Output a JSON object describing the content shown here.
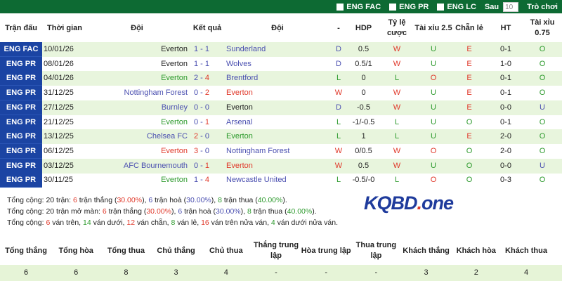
{
  "topbar": {
    "filters": [
      "ENG FAC",
      "ENG PR",
      "ENG LC"
    ],
    "after_label": "Sau",
    "count": "10",
    "games_label": "Trò chơi"
  },
  "header": [
    "Trận đấu",
    "Thời gian",
    "Đội",
    "Kết quả",
    "Đội",
    "-",
    "HDP",
    "Tỷ lệ cược",
    "Tài xỉu 2.5",
    "Chẵn lẻ",
    "HT",
    "Tài xỉu 0.75"
  ],
  "colors": {
    "topbar": "#0d6a33",
    "league": "#1b44a3",
    "row_alt": "#e8f5dd",
    "win": "#e0392b",
    "draw": "#4a4fb0",
    "lose": "#2d9a2d"
  },
  "rows": [
    {
      "league": "ENG FAC",
      "date": "10/01/26",
      "team1": "Everton",
      "t1c": "plain",
      "s1": "1",
      "s1c": "blue",
      "s2": "1",
      "s2c": "blue",
      "team2": "Sunderland",
      "t2c": "blue",
      "res": "D",
      "resc": "blue",
      "hdp": "0.5",
      "odds": "W",
      "oddsc": "red",
      "tx": "U",
      "txc": "green",
      "cl": "E",
      "clc": "red",
      "ht": "0-1",
      "t7": "O",
      "t7c": "green"
    },
    {
      "league": "ENG PR",
      "date": "08/01/26",
      "team1": "Everton",
      "t1c": "plain",
      "s1": "1",
      "s1c": "blue",
      "s2": "1",
      "s2c": "blue",
      "team2": "Wolves",
      "t2c": "blue",
      "res": "D",
      "resc": "blue",
      "hdp": "0.5/1",
      "odds": "W",
      "oddsc": "red",
      "tx": "U",
      "txc": "green",
      "cl": "E",
      "clc": "red",
      "ht": "1-0",
      "t7": "O",
      "t7c": "green"
    },
    {
      "league": "ENG PR",
      "date": "04/01/26",
      "team1": "Everton",
      "t1c": "green",
      "s1": "2",
      "s1c": "blue",
      "s2": "4",
      "s2c": "red",
      "team2": "Brentford",
      "t2c": "blue",
      "res": "L",
      "resc": "green",
      "hdp": "0",
      "odds": "L",
      "oddsc": "green",
      "tx": "O",
      "txc": "red",
      "cl": "E",
      "clc": "red",
      "ht": "0-1",
      "t7": "O",
      "t7c": "green"
    },
    {
      "league": "ENG PR",
      "date": "31/12/25",
      "team1": "Nottingham Forest",
      "t1c": "blue",
      "s1": "0",
      "s1c": "blue",
      "s2": "2",
      "s2c": "red",
      "team2": "Everton",
      "t2c": "red",
      "res": "W",
      "resc": "red",
      "hdp": "0",
      "odds": "W",
      "oddsc": "red",
      "tx": "U",
      "txc": "green",
      "cl": "E",
      "clc": "red",
      "ht": "0-1",
      "t7": "O",
      "t7c": "green"
    },
    {
      "league": "ENG PR",
      "date": "27/12/25",
      "team1": "Burnley",
      "t1c": "blue",
      "s1": "0",
      "s1c": "blue",
      "s2": "0",
      "s2c": "blue",
      "team2": "Everton",
      "t2c": "plain",
      "res": "D",
      "resc": "blue",
      "hdp": "-0.5",
      "odds": "W",
      "oddsc": "red",
      "tx": "U",
      "txc": "green",
      "cl": "E",
      "clc": "red",
      "ht": "0-0",
      "t7": "U",
      "t7c": "blue"
    },
    {
      "league": "ENG PR",
      "date": "21/12/25",
      "team1": "Everton",
      "t1c": "green",
      "s1": "0",
      "s1c": "blue",
      "s2": "1",
      "s2c": "red",
      "team2": "Arsenal",
      "t2c": "blue",
      "res": "L",
      "resc": "green",
      "hdp": "-1/-0.5",
      "odds": "L",
      "oddsc": "green",
      "tx": "U",
      "txc": "green",
      "cl": "O",
      "clc": "green",
      "ht": "0-1",
      "t7": "O",
      "t7c": "green"
    },
    {
      "league": "ENG PR",
      "date": "13/12/25",
      "team1": "Chelsea FC",
      "t1c": "blue",
      "s1": "2",
      "s1c": "red",
      "s2": "0",
      "s2c": "blue",
      "team2": "Everton",
      "t2c": "green",
      "res": "L",
      "resc": "green",
      "hdp": "1",
      "odds": "L",
      "oddsc": "green",
      "tx": "U",
      "txc": "green",
      "cl": "E",
      "clc": "red",
      "ht": "2-0",
      "t7": "O",
      "t7c": "green"
    },
    {
      "league": "ENG PR",
      "date": "06/12/25",
      "team1": "Everton",
      "t1c": "red",
      "s1": "3",
      "s1c": "red",
      "s2": "0",
      "s2c": "blue",
      "team2": "Nottingham Forest",
      "t2c": "blue",
      "res": "W",
      "resc": "red",
      "hdp": "0/0.5",
      "odds": "W",
      "oddsc": "red",
      "tx": "O",
      "txc": "red",
      "cl": "O",
      "clc": "green",
      "ht": "2-0",
      "t7": "O",
      "t7c": "green"
    },
    {
      "league": "ENG PR",
      "date": "03/12/25",
      "team1": "AFC Bournemouth",
      "t1c": "blue",
      "s1": "0",
      "s1c": "blue",
      "s2": "1",
      "s2c": "red",
      "team2": "Everton",
      "t2c": "red",
      "res": "W",
      "resc": "red",
      "hdp": "0.5",
      "odds": "W",
      "oddsc": "red",
      "tx": "U",
      "txc": "green",
      "cl": "O",
      "clc": "green",
      "ht": "0-0",
      "t7": "U",
      "t7c": "blue"
    },
    {
      "league": "ENG PR",
      "date": "30/11/25",
      "team1": "Everton",
      "t1c": "green",
      "s1": "1",
      "s1c": "blue",
      "s2": "4",
      "s2c": "red",
      "team2": "Newcastle United",
      "t2c": "blue",
      "res": "L",
      "resc": "green",
      "hdp": "-0.5/-0",
      "odds": "L",
      "oddsc": "green",
      "tx": "O",
      "txc": "red",
      "cl": "O",
      "clc": "green",
      "ht": "0-3",
      "t7": "O",
      "t7c": "green"
    }
  ],
  "stats": [
    [
      [
        "Tổng cộng: 20 trận: ",
        "plain"
      ],
      [
        "6",
        "red"
      ],
      [
        " trận thắng (",
        "plain"
      ],
      [
        "30.00%",
        "red"
      ],
      [
        "), ",
        "plain"
      ],
      [
        "6",
        "blue"
      ],
      [
        " trận hoà (",
        "plain"
      ],
      [
        "30.00%",
        "blue"
      ],
      [
        "), ",
        "plain"
      ],
      [
        "8",
        "green"
      ],
      [
        " trận thua (",
        "plain"
      ],
      [
        "40.00%",
        "green"
      ],
      [
        ").",
        "plain"
      ]
    ],
    [
      [
        "Tổng cộng: 20 trận mở màn: ",
        "plain"
      ],
      [
        "6",
        "red"
      ],
      [
        " trận thắng (",
        "plain"
      ],
      [
        "30.00%",
        "red"
      ],
      [
        "), ",
        "plain"
      ],
      [
        "6",
        "blue"
      ],
      [
        " trận hoà (",
        "plain"
      ],
      [
        "30.00%",
        "blue"
      ],
      [
        "), ",
        "plain"
      ],
      [
        "8",
        "green"
      ],
      [
        " trận thua (",
        "plain"
      ],
      [
        "40.00%",
        "green"
      ],
      [
        ").",
        "plain"
      ]
    ],
    [
      [
        "Tổng cộng: ",
        "plain"
      ],
      [
        "6",
        "red"
      ],
      [
        " ván trên, ",
        "plain"
      ],
      [
        "14",
        "green"
      ],
      [
        " ván dưới, ",
        "plain"
      ],
      [
        "12",
        "red"
      ],
      [
        " ván chẵn, ",
        "plain"
      ],
      [
        "8",
        "green"
      ],
      [
        " ván lẻ, ",
        "plain"
      ],
      [
        "16",
        "red"
      ],
      [
        " ván trên nửa ván, ",
        "plain"
      ],
      [
        "4",
        "green"
      ],
      [
        " ván dưới nửa ván.",
        "plain"
      ]
    ]
  ],
  "logo": {
    "main": "KQBD",
    "dot": ".",
    "tail": "one"
  },
  "summary": {
    "headers": [
      "Tổng thắng",
      "Tổng hòa",
      "Tổng thua",
      "Chủ thắng",
      "Chủ thua",
      "Thắng trung lập",
      "Hòa trung lập",
      "Thua trung lập",
      "Khách thắng",
      "Khách hòa",
      "Khách thua"
    ],
    "values": [
      "6",
      "6",
      "8",
      "3",
      "4",
      "-",
      "-",
      "-",
      "3",
      "2",
      "4"
    ]
  }
}
